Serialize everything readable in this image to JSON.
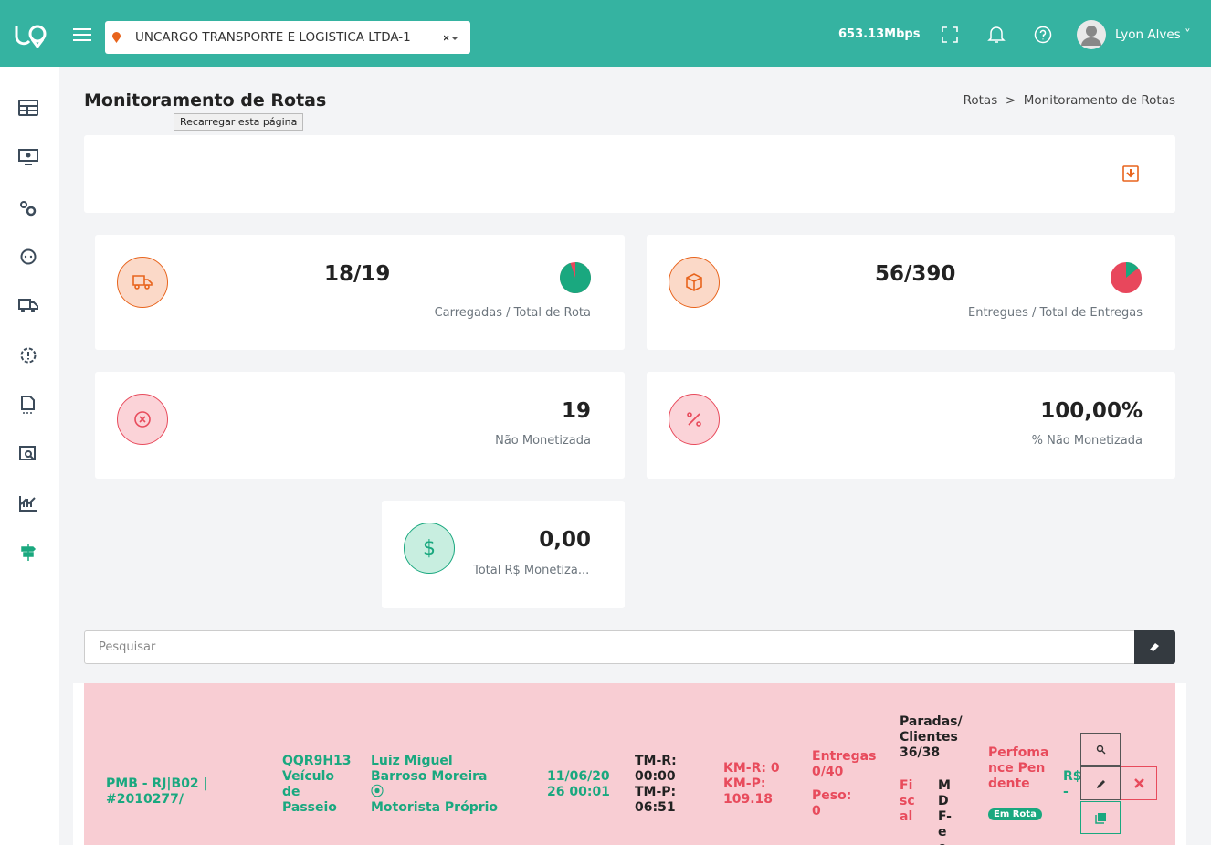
{
  "header": {
    "company": "UNCARGO TRANSPORTE E LOGISTICA LTDA-1",
    "speed": "653.13Mbps",
    "user": "Lyon Alves"
  },
  "page": {
    "title": "Monitoramento de Rotas",
    "tooltip": "Recarregar esta página",
    "breadcrumb": [
      "Rotas",
      ">",
      "Monitoramento de Rotas"
    ]
  },
  "cards": [
    {
      "value": "18/19",
      "label": "Carregadas / Total de Rota"
    },
    {
      "value": "56/390",
      "label": "Entregues / Total de Entregas"
    },
    {
      "value": "19",
      "label": "Não Monetizada"
    },
    {
      "value": "100,00%",
      "label": "% Não Monetizada"
    },
    {
      "value": "0,00",
      "label": "Total R$ Monetiza..."
    }
  ],
  "search": {
    "placeholder": "Pesquisar"
  },
  "row": {
    "route": "PMB - RJ|B02 | #2010277/",
    "vehicle": "QQR9H13 Veículo de Passeio",
    "driver": "Luiz Miguel Barroso Moreira",
    "driver_type": "Motorista Próprio",
    "date": "11/06/2026 00:01",
    "tm_r": "TM-R: 00:00",
    "tm_p": "TM-P: 06:51",
    "km_r": "KM-R: 0",
    "km_p": "KM-P: 109.18",
    "deliveries": "Entregas 0/40",
    "weight": "Peso: 0",
    "stops": "Paradas/ Clientes 36/38",
    "fiscal": "Fiscal",
    "mdfe": "MDF-e ok",
    "performance": "Perfomance Pendente",
    "status": "Em Rota",
    "money": "R$ -"
  }
}
